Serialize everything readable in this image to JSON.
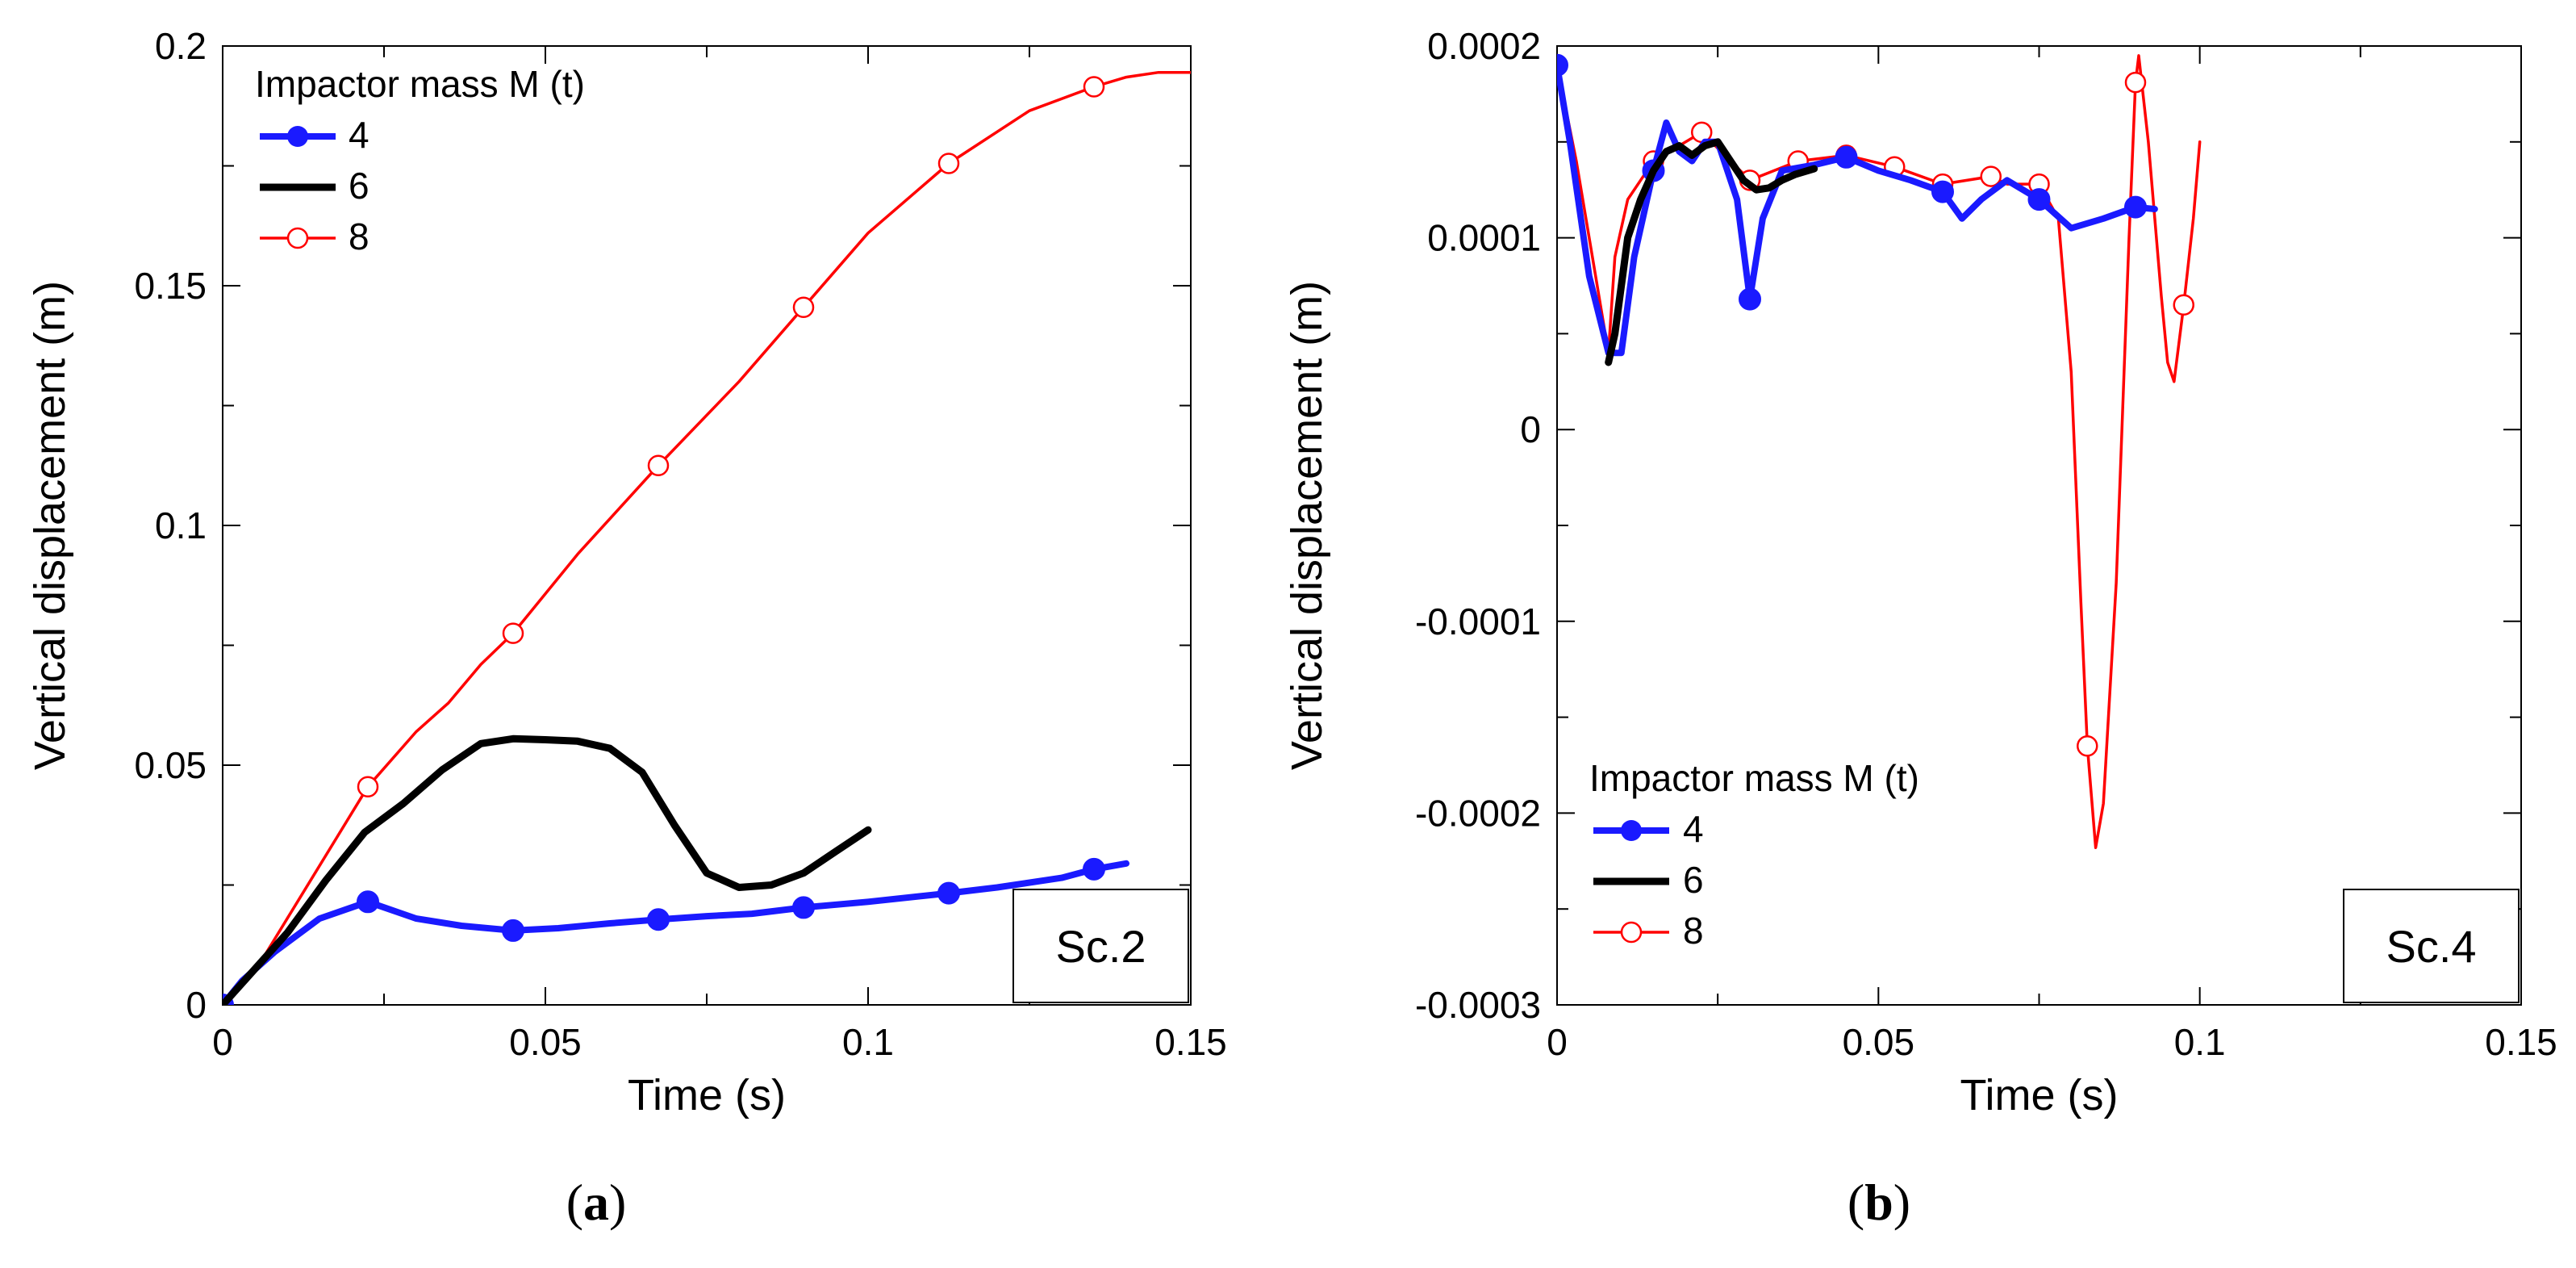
{
  "chart_data": [
    {
      "type": "line",
      "panel_label": "a",
      "panel_tag": "Sc.2",
      "xlabel": "Time  (s)",
      "ylabel": "Vertical displacement  (m)",
      "xlim": [
        0,
        0.15
      ],
      "ylim": [
        0,
        0.2
      ],
      "xticks": [
        0,
        0.05,
        0.1,
        0.15
      ],
      "xtick_labels": [
        "0",
        "0.05",
        "0.1",
        "0.15"
      ],
      "yticks": [
        0,
        0.05,
        0.1,
        0.15,
        0.2
      ],
      "ytick_labels": [
        "0",
        "0.05",
        "0.1",
        "0.15",
        "0.2"
      ],
      "legend_title": "Impactor mass M (t)",
      "legend_position": "top-left",
      "series": [
        {
          "name": "4",
          "color": "#1a1aff",
          "marker": "filled-circle",
          "x": [
            0,
            0.003,
            0.008,
            0.015,
            0.0225,
            0.03,
            0.037,
            0.045,
            0.052,
            0.06,
            0.0675,
            0.075,
            0.082,
            0.09,
            0.1,
            0.1125,
            0.12,
            0.13,
            0.135,
            0.14
          ],
          "y": [
            0,
            0.005,
            0.011,
            0.018,
            0.0215,
            0.018,
            0.0165,
            0.0155,
            0.016,
            0.017,
            0.0178,
            0.0185,
            0.019,
            0.0203,
            0.0215,
            0.0233,
            0.0245,
            0.0265,
            0.0283,
            0.0295
          ],
          "marker_x": [
            0,
            0.0225,
            0.045,
            0.0675,
            0.09,
            0.1125,
            0.135
          ],
          "marker_y": [
            0,
            0.0215,
            0.0155,
            0.0178,
            0.0203,
            0.0233,
            0.0283
          ]
        },
        {
          "name": "6",
          "color": "#000000",
          "marker": "none",
          "x": [
            0,
            0.004,
            0.01,
            0.016,
            0.022,
            0.028,
            0.034,
            0.04,
            0.045,
            0.05,
            0.055,
            0.06,
            0.065,
            0.07,
            0.075,
            0.08,
            0.085,
            0.09,
            0.095,
            0.1
          ],
          "y": [
            0,
            0.006,
            0.015,
            0.026,
            0.036,
            0.042,
            0.049,
            0.0545,
            0.0555,
            0.0553,
            0.055,
            0.0535,
            0.0485,
            0.0375,
            0.0275,
            0.0245,
            0.025,
            0.0275,
            0.032,
            0.0365
          ]
        },
        {
          "name": "8",
          "color": "#ff0000",
          "marker": "open-circle",
          "x": [
            0,
            0.005,
            0.01,
            0.0225,
            0.03,
            0.035,
            0.04,
            0.045,
            0.055,
            0.0675,
            0.08,
            0.09,
            0.1,
            0.1125,
            0.125,
            0.135,
            0.14,
            0.145,
            0.15
          ],
          "y": [
            0,
            0.007,
            0.018,
            0.0455,
            0.057,
            0.063,
            0.071,
            0.0775,
            0.094,
            0.1125,
            0.13,
            0.1455,
            0.161,
            0.1755,
            0.1865,
            0.1915,
            0.1935,
            0.1945,
            0.1945
          ],
          "marker_x": [
            0.0225,
            0.045,
            0.0675,
            0.09,
            0.1125,
            0.135
          ],
          "marker_y": [
            0.0455,
            0.0775,
            0.1125,
            0.1455,
            0.1755,
            0.1915
          ]
        }
      ]
    },
    {
      "type": "line",
      "panel_label": "b",
      "panel_tag": "Sc.4",
      "xlabel": "Time  (s)",
      "ylabel": "Vertical displacement  (m)",
      "xlim": [
        0,
        0.15
      ],
      "ylim": [
        -0.0003,
        0.0002
      ],
      "xticks": [
        0,
        0.05,
        0.1,
        0.15
      ],
      "xtick_labels": [
        "0",
        "0.05",
        "0.1",
        "0.15"
      ],
      "yticks": [
        -0.0003,
        -0.0002,
        -0.0001,
        0,
        0.0001,
        0.0002
      ],
      "ytick_labels": [
        "-0.0003",
        "-0.0002",
        "-0.0001",
        "0",
        "0.0001",
        "0.0002"
      ],
      "legend_title": "Impactor mass M (t)",
      "legend_position": "bottom-left",
      "series": [
        {
          "name": "4",
          "color": "#1a1aff",
          "marker": "filled-circle",
          "x": [
            0,
            0.002,
            0.005,
            0.008,
            0.01,
            0.012,
            0.015,
            0.017,
            0.019,
            0.021,
            0.023,
            0.025,
            0.027,
            0.028,
            0.03,
            0.032,
            0.035,
            0.04,
            0.045,
            0.05,
            0.055,
            0.06,
            0.063,
            0.066,
            0.07,
            0.075,
            0.08,
            0.085,
            0.09,
            0.093
          ],
          "y": [
            0.00019,
            0.00015,
            8e-05,
            4e-05,
            4e-05,
            9e-05,
            0.000135,
            0.00016,
            0.000145,
            0.00014,
            0.00015,
            0.00015,
            0.00013,
            0.00012,
            6.8e-05,
            0.00011,
            0.000135,
            0.000138,
            0.000142,
            0.000135,
            0.00013,
            0.000124,
            0.00011,
            0.00012,
            0.00013,
            0.00012,
            0.000105,
            0.00011,
            0.000116,
            0.000115
          ],
          "marker_x": [
            0,
            0.015,
            0.03,
            0.045,
            0.06,
            0.075,
            0.09
          ],
          "marker_y": [
            0.00019,
            0.000135,
            6.8e-05,
            0.000142,
            0.000124,
            0.00012,
            0.000116
          ]
        },
        {
          "name": "6",
          "color": "#000000",
          "marker": "none",
          "x": [
            0.008,
            0.009,
            0.011,
            0.013,
            0.015,
            0.017,
            0.019,
            0.021,
            0.023,
            0.025,
            0.027,
            0.029,
            0.031,
            0.033,
            0.035,
            0.037,
            0.04
          ],
          "y": [
            3.5e-05,
            5e-05,
            0.0001,
            0.00012,
            0.000135,
            0.000145,
            0.000148,
            0.000143,
            0.000148,
            0.00015,
            0.00014,
            0.00013,
            0.000125,
            0.000126,
            0.00013,
            0.000133,
            0.000136
          ]
        },
        {
          "name": "8",
          "color": "#ff0000",
          "marker": "open-circle",
          "x": [
            0,
            0.003,
            0.006,
            0.008,
            0.009,
            0.011,
            0.013,
            0.015,
            0.0225,
            0.03,
            0.0375,
            0.045,
            0.0525,
            0.06,
            0.0675,
            0.07,
            0.075,
            0.078,
            0.08,
            0.0815,
            0.0825,
            0.0838,
            0.085,
            0.087,
            0.089,
            0.09,
            0.0905,
            0.092,
            0.094,
            0.095,
            0.096,
            0.0975,
            0.099,
            0.1
          ],
          "y": [
            0.00019,
            0.00014,
            8e-05,
            4e-05,
            9e-05,
            0.00012,
            0.00013,
            0.00014,
            0.000155,
            0.00013,
            0.00014,
            0.000143,
            0.000137,
            0.000128,
            0.000132,
            0.000128,
            0.000128,
            0.00011,
            3e-05,
            -9e-05,
            -0.000165,
            -0.000218,
            -0.000195,
            -8e-05,
            0.0001,
            0.000181,
            0.000195,
            0.00015,
            7e-05,
            3.5e-05,
            2.5e-05,
            6.5e-05,
            0.00011,
            0.00015
          ],
          "marker_x": [
            0,
            0.015,
            0.0225,
            0.03,
            0.0375,
            0.045,
            0.0525,
            0.06,
            0.0675,
            0.075,
            0.0825,
            0.09,
            0.0975
          ],
          "marker_y": [
            0.00019,
            0.00014,
            0.000155,
            0.00013,
            0.00014,
            0.000143,
            0.000137,
            0.000128,
            0.000132,
            0.000128,
            -0.000165,
            0.000181,
            6.5e-05
          ]
        }
      ]
    }
  ]
}
